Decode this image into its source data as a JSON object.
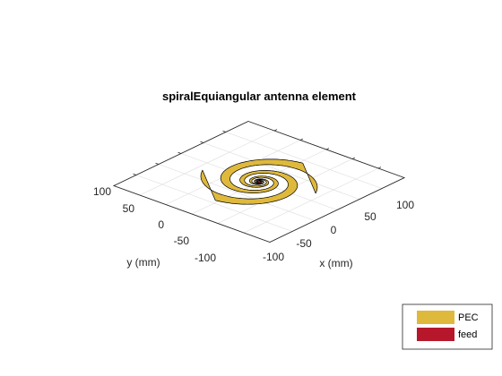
{
  "figure": {
    "title": "spiralEquiangular antenna element",
    "xlabel": "x (mm)",
    "ylabel": "y (mm)",
    "x_ticks": [
      "-100",
      "-50",
      "0",
      "50",
      "100"
    ],
    "y_ticks": [
      "-100",
      "-50",
      "0",
      "50",
      "100"
    ],
    "colors": {
      "pec": "#dfb93c",
      "feed": "#b6172b",
      "axis": "#262626",
      "grid": "#dcdcdc"
    },
    "legend": {
      "placement": "bottom-right",
      "items": [
        {
          "label": "PEC",
          "color": "#dfb93c"
        },
        {
          "label": "feed",
          "color": "#b6172b"
        }
      ]
    }
  },
  "chart_data": {
    "type": "diagram",
    "title": "spiralEquiangular antenna element",
    "xlabel": "x (mm)",
    "ylabel": "y (mm)",
    "xlim": [
      -150,
      150
    ],
    "ylim": [
      -150,
      150
    ],
    "x_ticks": [
      -100,
      -50,
      0,
      50,
      100
    ],
    "y_ticks": [
      -100,
      -50,
      0,
      50,
      100
    ],
    "grid": true,
    "legend": [
      "PEC",
      "feed"
    ],
    "legend_placement": "bottom-right"
  }
}
